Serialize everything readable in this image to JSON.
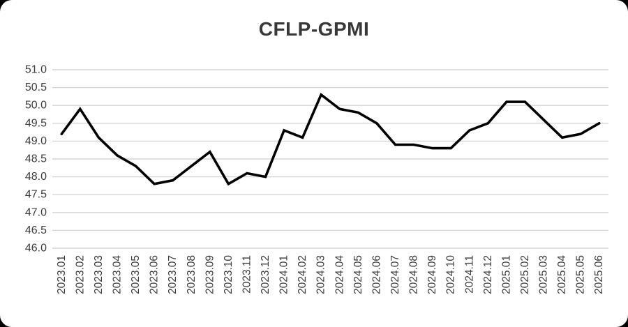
{
  "chart_data": {
    "type": "line",
    "title": "CFLP-GPMI",
    "xlabel": "",
    "ylabel": "",
    "ylim": [
      46.0,
      51.0
    ],
    "ytick_step": 0.5,
    "grid": true,
    "legend_position": "none",
    "y_ticks": [
      "51.0",
      "50.5",
      "50.0",
      "49.5",
      "49.0",
      "48.5",
      "48.0",
      "47.5",
      "47.0",
      "46.5",
      "46.0"
    ],
    "categories": [
      "2023.01",
      "2023.02",
      "2023.03",
      "2023.04",
      "2023.05",
      "2023.06",
      "2023.07",
      "2023.08",
      "2023.09",
      "2023.10",
      "2023.11",
      "2023.12",
      "2024.01",
      "2024.02",
      "2024.03",
      "2024.04",
      "2024.05",
      "2024.06",
      "2024.07",
      "2024.08",
      "2024.09",
      "2024.10",
      "2024.11",
      "2024.12",
      "2025.01",
      "2025.02",
      "2025.03",
      "2025.04",
      "2025.05",
      "2025.06"
    ],
    "series": [
      {
        "name": "CFLP-GPMI",
        "values": [
          49.2,
          49.9,
          49.1,
          48.6,
          48.3,
          47.8,
          47.9,
          48.3,
          48.7,
          47.8,
          48.1,
          48.0,
          49.3,
          49.1,
          50.3,
          49.9,
          49.8,
          49.5,
          48.9,
          48.9,
          48.8,
          48.8,
          49.3,
          49.5,
          50.1,
          50.1,
          49.6,
          49.1,
          49.2,
          49.5
        ]
      }
    ],
    "colors": {
      "line": "#000000",
      "grid": "#d6d6d6",
      "axis_labels": "#3d3d3d",
      "title": "#383838",
      "plot_background": "#ffffff",
      "frame_background": "#000000"
    }
  }
}
